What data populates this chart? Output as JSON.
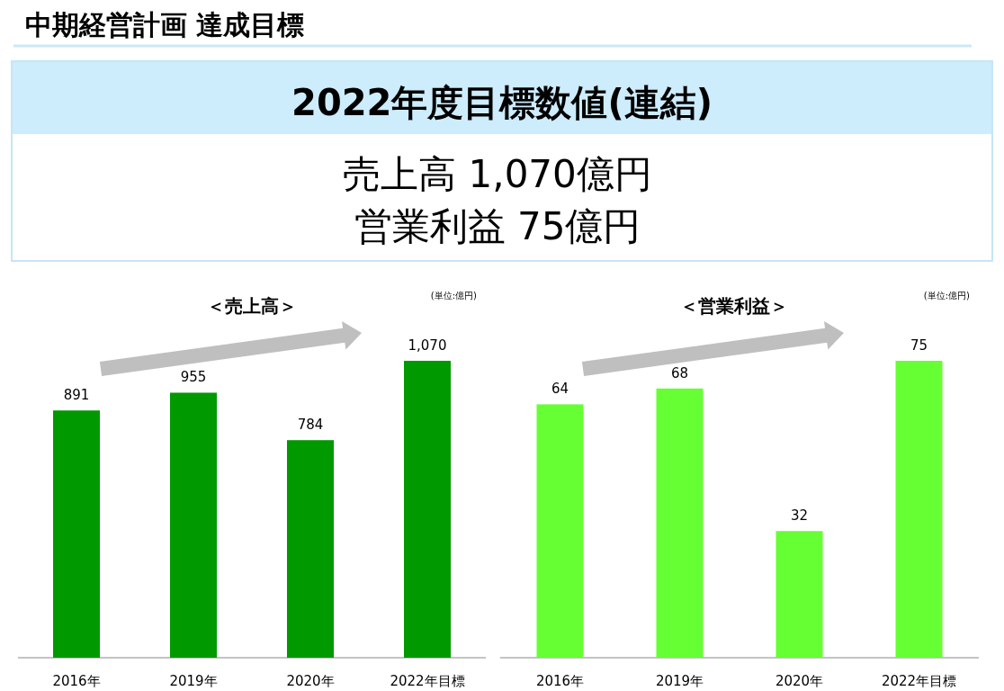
{
  "chart_data": [
    {
      "type": "other",
      "title": "中期経営計画 達成目標",
      "subtitle": "2022年度目標数値(連結)",
      "annotations": [
        "売上高 1,070億円",
        "営業利益 75億円"
      ]
    },
    {
      "type": "bar",
      "title": "＜売上高＞",
      "annotations": [
        "(単位:億円)"
      ],
      "categories": [
        "2016年",
        "2019年",
        "2020年",
        "2022年目標"
      ],
      "values": [
        891,
        955,
        784,
        1070
      ],
      "value_labels": [
        "891",
        "955",
        "784",
        "1,070"
      ],
      "color": "#009900"
    },
    {
      "type": "bar",
      "title": "＜営業利益＞",
      "annotations": [
        "(単位:億円)"
      ],
      "categories": [
        "2016年",
        "2019年",
        "2020年",
        "2022年目標"
      ],
      "values": [
        64,
        68,
        32,
        75
      ],
      "color": "#66ff33",
      "data_labels": true
    }
  ]
}
